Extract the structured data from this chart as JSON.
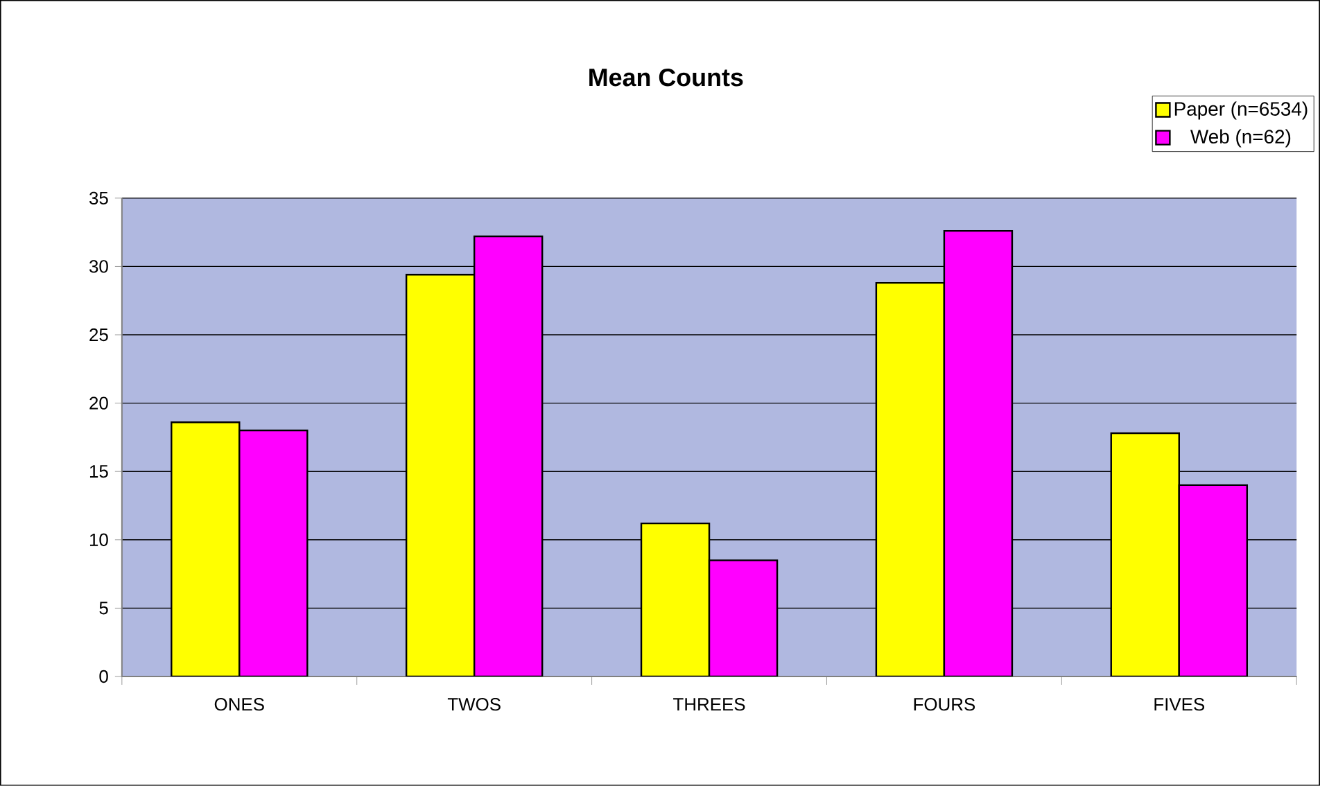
{
  "chart_data": {
    "type": "bar",
    "title": "Mean Counts",
    "categories": [
      "ONES",
      "TWOS",
      "THREES",
      "FOURS",
      "FIVES"
    ],
    "series": [
      {
        "name": "Paper (n=6534)",
        "color": "#ffff00",
        "values": [
          18.6,
          29.4,
          11.2,
          28.8,
          17.8
        ]
      },
      {
        "name": "Web (n=62)",
        "color": "#ff00ff",
        "values": [
          18.0,
          32.2,
          8.5,
          32.6,
          14.0
        ]
      }
    ],
    "ylim": [
      0,
      35
    ],
    "yticks": [
      0,
      5,
      10,
      15,
      20,
      25,
      30,
      35
    ],
    "grid": "y",
    "legend": "top right"
  }
}
